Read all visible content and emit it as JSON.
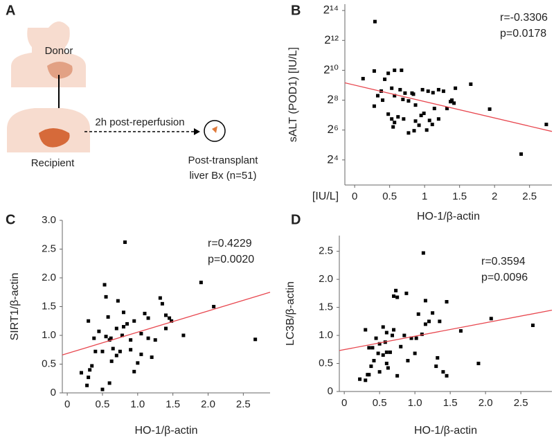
{
  "diagram": {
    "label": "A",
    "donor": "Donor",
    "recipient": "Recipient",
    "arrow_label": "2h post-reperfusion",
    "biopsy_label": [
      "Post-transplant",
      "liver Bx (n=51)"
    ]
  },
  "chart_data": [
    {
      "type": "scatter",
      "label": "B",
      "x_label": "HO-1/β-actin",
      "y_label": "sALT (POD1) [IU/L]",
      "y_unit_label": "[IU/L]",
      "yscale": "log2",
      "color": "#000000",
      "annotations": [
        "r=-0.3306",
        "p=0.0178"
      ],
      "xlim": [
        -0.14,
        2.82
      ],
      "xticks": [
        0,
        0.5,
        1,
        1.5,
        2,
        2.5
      ],
      "ylim": [
        5,
        22000
      ],
      "yticks": [
        {
          "value": 16,
          "label": "2⁴"
        },
        {
          "value": 64,
          "label": "2⁶"
        },
        {
          "value": 256,
          "label": "2⁸"
        },
        {
          "value": 1024,
          "label": "2¹⁰"
        },
        {
          "value": 4096,
          "label": "2¹²"
        },
        {
          "value": 16384,
          "label": "2¹⁴"
        }
      ],
      "x": [
        0.29,
        0.28,
        0.12,
        0.43,
        0.48,
        0.57,
        0.67,
        0.38,
        0.33,
        0.28,
        0.4,
        0.53,
        0.57,
        0.65,
        0.72,
        0.69,
        0.82,
        0.84,
        0.77,
        0.87,
        0.97,
        1.05,
        1.12,
        1.2,
        1.27,
        1.39,
        1.44,
        1.32,
        1.37,
        1.42,
        1.66,
        1.93,
        2.74,
        2.38,
        0.48,
        0.53,
        0.57,
        0.62,
        0.55,
        0.7,
        0.87,
        0.95,
        0.99,
        1.07,
        1.11,
        1.03,
        1.14,
        0.77,
        0.85,
        0.92,
        1.2
      ],
      "values": [
        9800,
        990,
        695,
        675,
        890,
        1024,
        1024,
        390,
        315,
        194,
        256,
        446,
        315,
        416,
        355,
        265,
        355,
        338,
        247,
        204,
        416,
        388,
        362,
        416,
        388,
        256,
        446,
        174,
        239,
        223,
        537,
        169,
        83,
        21,
        134,
        107,
        91,
        118,
        74,
        107,
        97,
        126,
        139,
        100,
        83,
        64,
        174,
        56,
        62,
        80,
        107
      ],
      "trendline": {
        "x": [
          -0.14,
          2.82
        ],
        "y": [
          572,
          60
        ],
        "color": "#e8474f"
      }
    },
    {
      "type": "scatter",
      "label": "C",
      "x_label": "HO-1/β-actin",
      "y_label": "SIRT1/β-actin",
      "color": "#000000",
      "annotations": [
        "r=0.4229",
        "p=0.0020"
      ],
      "xlim": [
        -0.07,
        2.88
      ],
      "xticks": [
        0,
        0.5,
        {
          "value": 1,
          "label": "1.0"
        },
        1.5,
        {
          "value": 2,
          "label": "2.0"
        },
        2.5
      ],
      "ylim": [
        0,
        3
      ],
      "yticks": [
        0,
        0.5,
        {
          "value": 1,
          "label": "1.0"
        },
        1.5,
        {
          "value": 2,
          "label": "2.0"
        },
        2.5,
        {
          "value": 3,
          "label": "3.0"
        }
      ],
      "x": [
        0.2,
        0.28,
        0.3,
        0.32,
        0.3,
        0.38,
        0.4,
        0.45,
        0.5,
        0.5,
        0.53,
        0.55,
        0.55,
        0.58,
        0.6,
        0.6,
        0.63,
        0.65,
        0.7,
        0.7,
        0.72,
        0.75,
        0.78,
        0.8,
        0.82,
        0.85,
        0.9,
        0.9,
        0.95,
        0.95,
        1.0,
        1.05,
        1.05,
        1.1,
        1.15,
        1.15,
        1.2,
        1.25,
        1.32,
        1.35,
        1.4,
        1.4,
        1.45,
        1.48,
        1.65,
        1.9,
        2.08,
        2.67,
        0.35,
        0.62,
        0.8
      ],
      "values": [
        0.35,
        0.13,
        0.27,
        0.4,
        1.25,
        0.95,
        0.72,
        1.07,
        0.06,
        0.72,
        1.88,
        0.98,
        1.67,
        1.32,
        0.92,
        0.17,
        0.55,
        0.77,
        0.65,
        1.12,
        1.6,
        0.72,
        1.0,
        1.4,
        2.62,
        1.2,
        0.75,
        0.92,
        0.37,
        1.25,
        0.52,
        0.67,
        1.03,
        1.38,
        1.3,
        0.95,
        0.62,
        0.92,
        1.65,
        1.55,
        1.12,
        1.35,
        1.3,
        1.25,
        1.0,
        1.92,
        1.5,
        0.93,
        0.47,
        0.95,
        1.15
      ],
      "trendline": {
        "x": [
          -0.07,
          2.88
        ],
        "y": [
          0.66,
          1.75
        ],
        "color": "#e8474f"
      }
    },
    {
      "type": "scatter",
      "label": "D",
      "x_label": "HO-1/β-actin",
      "y_label": "LC3B/β-actin",
      "color": "#000000",
      "annotations": [
        "r=0.3594",
        "p=0.0096"
      ],
      "xlim": [
        -0.07,
        2.94
      ],
      "xticks": [
        0,
        0.5,
        {
          "value": 1,
          "label": "1.0"
        },
        1.5,
        {
          "value": 2,
          "label": "2.0"
        },
        2.5
      ],
      "ylim": [
        0,
        2.78
      ],
      "yticks": [
        0,
        0.5,
        {
          "value": 1,
          "label": "1.0"
        },
        1.5,
        {
          "value": 2,
          "label": "2.0"
        },
        2.5
      ],
      "x": [
        0.22,
        0.3,
        0.33,
        0.35,
        0.3,
        0.38,
        0.42,
        0.4,
        0.45,
        0.48,
        0.5,
        0.5,
        0.55,
        0.55,
        0.58,
        0.6,
        0.6,
        0.62,
        0.65,
        0.68,
        0.7,
        0.7,
        0.73,
        0.75,
        0.75,
        0.8,
        0.85,
        0.88,
        0.9,
        0.95,
        1.0,
        1.02,
        1.05,
        1.1,
        1.12,
        1.15,
        1.15,
        1.2,
        1.25,
        1.3,
        1.32,
        1.35,
        1.4,
        1.45,
        1.45,
        1.65,
        1.9,
        2.08,
        2.67,
        0.6,
        0.35
      ],
      "values": [
        0.22,
        0.2,
        0.3,
        0.78,
        1.1,
        0.45,
        0.55,
        0.78,
        0.95,
        0.68,
        0.35,
        0.85,
        1.15,
        0.65,
        0.88,
        0.5,
        1.05,
        0.42,
        0.7,
        1.0,
        1.1,
        1.7,
        1.8,
        1.68,
        0.28,
        0.8,
        1.0,
        1.75,
        0.55,
        0.95,
        0.68,
        0.95,
        1.38,
        1.02,
        2.47,
        1.62,
        1.2,
        1.25,
        1.4,
        0.45,
        0.6,
        1.25,
        0.35,
        1.6,
        0.28,
        1.08,
        0.5,
        1.3,
        1.18,
        0.7,
        0.3
      ],
      "trendline": {
        "x": [
          -0.07,
          2.94
        ],
        "y": [
          0.73,
          1.45
        ],
        "color": "#e8474f"
      }
    }
  ]
}
